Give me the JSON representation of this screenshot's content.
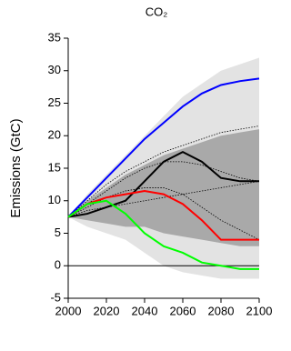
{
  "chart_data": {
    "type": "line",
    "title": "CO₂",
    "y_label": "Emissions (GtC)",
    "x": [
      2000,
      2010,
      2020,
      2030,
      2040,
      2050,
      2060,
      2070,
      2080,
      2090,
      2100
    ],
    "xlim": [
      2000,
      2100
    ],
    "xticks": [
      2000,
      2020,
      2040,
      2060,
      2080,
      2100
    ],
    "ylim": [
      -5,
      35
    ],
    "yticks": [
      -5,
      0,
      5,
      10,
      15,
      20,
      25,
      30,
      35
    ],
    "zero_line": 0,
    "bands": [
      {
        "color": "#e3e3e3",
        "upper": [
          7.5,
          11,
          14,
          17,
          20,
          23,
          26,
          28,
          30,
          31,
          32
        ],
        "lower": [
          7.5,
          6,
          5,
          4,
          2,
          0,
          -1,
          -1.5,
          -2,
          -2,
          -2
        ]
      },
      {
        "color": "#a9a9a9",
        "upper": [
          7.5,
          10,
          12,
          14,
          15.5,
          17,
          18,
          19,
          20,
          20.5,
          21
        ],
        "lower": [
          7.5,
          7,
          6.5,
          6,
          6,
          5,
          4.5,
          4,
          3.5,
          3,
          3
        ]
      }
    ],
    "series": [
      {
        "color": "#000000",
        "style": "dotted",
        "values": [
          7.5,
          10,
          12.5,
          14.5,
          16,
          17.5,
          18.5,
          19.5,
          20.5,
          21,
          21.5
        ]
      },
      {
        "color": "#000000",
        "style": "dotted",
        "values": [
          7.5,
          9.5,
          11.5,
          13.5,
          15,
          16,
          16,
          15.5,
          14.5,
          13.5,
          13
        ]
      },
      {
        "color": "#000000",
        "style": "dotted",
        "values": [
          7.5,
          8.5,
          9,
          9.5,
          10,
          10.5,
          11,
          11.5,
          12,
          12.5,
          13
        ]
      },
      {
        "color": "#000000",
        "style": "dotted",
        "values": [
          7.5,
          9,
          10.5,
          11.5,
          12,
          12,
          11,
          9,
          7,
          5.5,
          4
        ]
      },
      {
        "color": "#0000ff",
        "style": "solid",
        "values": [
          7.5,
          10.5,
          13.5,
          16.5,
          19.5,
          22,
          24.5,
          26.5,
          27.8,
          28.4,
          28.8
        ]
      },
      {
        "color": "#000000",
        "style": "solid",
        "values": [
          7.5,
          8,
          9,
          10,
          13,
          16,
          17.5,
          16,
          13.5,
          13,
          13
        ]
      },
      {
        "color": "#ff0000",
        "style": "solid",
        "values": [
          7.5,
          9.5,
          10.5,
          11,
          11.5,
          11,
          9.5,
          7,
          4,
          4,
          4
        ]
      },
      {
        "color": "#00ff00",
        "style": "solid",
        "values": [
          7.5,
          9.5,
          10,
          8,
          5,
          3,
          2,
          0.5,
          0,
          -0.5,
          -0.5
        ]
      }
    ]
  }
}
